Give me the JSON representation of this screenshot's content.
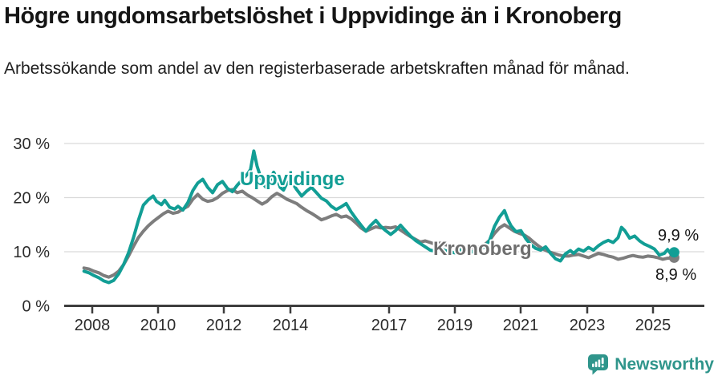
{
  "chart_data": {
    "type": "line",
    "title": "Högre ungdomsarbetslöshet i Uppvidinge än i Kronoberg",
    "subtitle": "Arbetssökande som andel av den registerbaserade arbetskraften månad för månad.",
    "xlabel": "",
    "ylabel": "",
    "ylim": [
      0,
      30
    ],
    "xlim": [
      2007.75,
      2025.9
    ],
    "grid": "horizontal",
    "legend_position": "inline-labels",
    "y_tick_labels": [
      "0 %",
      "10 %",
      "20 %",
      "30 %"
    ],
    "x_tick_labels": [
      "2008",
      "2010",
      "2012",
      "2014",
      "2017",
      "2019",
      "2021",
      "2023",
      "2025"
    ],
    "series": [
      {
        "id": "kronoberg",
        "name": "Kronoberg",
        "color": "#7d7d7d",
        "end_label": "8,9 %",
        "points": [
          [
            2007.75,
            7.0
          ],
          [
            2007.9,
            6.8
          ],
          [
            2008.05,
            6.4
          ],
          [
            2008.2,
            6.1
          ],
          [
            2008.35,
            5.6
          ],
          [
            2008.5,
            5.3
          ],
          [
            2008.65,
            5.7
          ],
          [
            2008.8,
            6.4
          ],
          [
            2008.95,
            7.6
          ],
          [
            2009.1,
            9.2
          ],
          [
            2009.25,
            11.0
          ],
          [
            2009.4,
            12.6
          ],
          [
            2009.55,
            13.8
          ],
          [
            2009.7,
            14.8
          ],
          [
            2009.85,
            15.6
          ],
          [
            2010.0,
            16.3
          ],
          [
            2010.15,
            17.0
          ],
          [
            2010.3,
            17.5
          ],
          [
            2010.45,
            17.1
          ],
          [
            2010.6,
            17.3
          ],
          [
            2010.75,
            17.9
          ],
          [
            2010.9,
            18.4
          ],
          [
            2011.05,
            19.7
          ],
          [
            2011.2,
            20.6
          ],
          [
            2011.35,
            19.7
          ],
          [
            2011.5,
            19.3
          ],
          [
            2011.65,
            19.5
          ],
          [
            2011.8,
            20.0
          ],
          [
            2011.95,
            20.8
          ],
          [
            2012.1,
            21.3
          ],
          [
            2012.25,
            21.5
          ],
          [
            2012.4,
            20.9
          ],
          [
            2012.55,
            21.2
          ],
          [
            2012.7,
            20.5
          ],
          [
            2012.85,
            20.0
          ],
          [
            2013.0,
            19.4
          ],
          [
            2013.15,
            18.8
          ],
          [
            2013.3,
            19.3
          ],
          [
            2013.45,
            20.2
          ],
          [
            2013.6,
            20.8
          ],
          [
            2013.75,
            20.3
          ],
          [
            2013.9,
            19.7
          ],
          [
            2014.05,
            19.3
          ],
          [
            2014.2,
            18.9
          ],
          [
            2014.35,
            18.2
          ],
          [
            2014.5,
            17.6
          ],
          [
            2014.65,
            17.1
          ],
          [
            2014.8,
            16.5
          ],
          [
            2014.95,
            15.9
          ],
          [
            2015.1,
            16.2
          ],
          [
            2015.25,
            16.6
          ],
          [
            2015.4,
            16.9
          ],
          [
            2015.55,
            16.4
          ],
          [
            2015.7,
            16.6
          ],
          [
            2015.85,
            16.1
          ],
          [
            2016.0,
            15.3
          ],
          [
            2016.15,
            14.4
          ],
          [
            2016.3,
            13.8
          ],
          [
            2016.45,
            14.2
          ],
          [
            2016.6,
            14.6
          ],
          [
            2016.75,
            14.4
          ],
          [
            2016.9,
            14.5
          ],
          [
            2017.05,
            14.4
          ],
          [
            2017.2,
            14.6
          ],
          [
            2017.35,
            14.0
          ],
          [
            2017.5,
            13.4
          ],
          [
            2017.65,
            12.8
          ],
          [
            2017.8,
            12.3
          ],
          [
            2017.95,
            11.8
          ],
          [
            2018.1,
            12.0
          ],
          [
            2018.25,
            11.7
          ],
          [
            2018.4,
            11.4
          ],
          [
            2018.55,
            11.6
          ],
          [
            2018.7,
            11.3
          ],
          [
            2018.85,
            11.1
          ],
          [
            2019.0,
            11.0
          ],
          [
            2019.15,
            10.9
          ],
          [
            2019.3,
            10.7
          ],
          [
            2019.45,
            10.8
          ],
          [
            2019.6,
            10.6
          ],
          [
            2019.75,
            10.9
          ],
          [
            2019.9,
            11.3
          ],
          [
            2020.05,
            12.1
          ],
          [
            2020.2,
            13.4
          ],
          [
            2020.35,
            14.4
          ],
          [
            2020.5,
            15.0
          ],
          [
            2020.65,
            14.4
          ],
          [
            2020.8,
            13.8
          ],
          [
            2020.95,
            13.4
          ],
          [
            2021.1,
            13.1
          ],
          [
            2021.25,
            12.5
          ],
          [
            2021.4,
            11.7
          ],
          [
            2021.55,
            11.0
          ],
          [
            2021.7,
            10.4
          ],
          [
            2021.85,
            10.0
          ],
          [
            2022.0,
            9.7
          ],
          [
            2022.15,
            9.4
          ],
          [
            2022.3,
            9.2
          ],
          [
            2022.45,
            9.2
          ],
          [
            2022.6,
            9.4
          ],
          [
            2022.75,
            9.5
          ],
          [
            2022.9,
            9.2
          ],
          [
            2023.05,
            8.9
          ],
          [
            2023.2,
            9.3
          ],
          [
            2023.35,
            9.7
          ],
          [
            2023.5,
            9.5
          ],
          [
            2023.65,
            9.2
          ],
          [
            2023.8,
            9.0
          ],
          [
            2023.95,
            8.6
          ],
          [
            2024.1,
            8.8
          ],
          [
            2024.25,
            9.1
          ],
          [
            2024.4,
            9.3
          ],
          [
            2024.55,
            9.1
          ],
          [
            2024.7,
            9.0
          ],
          [
            2024.85,
            9.2
          ],
          [
            2025.0,
            9.1
          ],
          [
            2025.15,
            8.9
          ],
          [
            2025.3,
            8.6
          ],
          [
            2025.45,
            8.8
          ],
          [
            2025.65,
            8.9
          ]
        ]
      },
      {
        "id": "uppvidinge",
        "name": "Uppvidinge",
        "color": "#129e95",
        "end_label": "9,9 %",
        "points": [
          [
            2007.75,
            6.4
          ],
          [
            2007.9,
            6.1
          ],
          [
            2008.05,
            5.6
          ],
          [
            2008.2,
            5.2
          ],
          [
            2008.35,
            4.6
          ],
          [
            2008.5,
            4.3
          ],
          [
            2008.65,
            4.7
          ],
          [
            2008.8,
            5.9
          ],
          [
            2008.95,
            7.6
          ],
          [
            2009.1,
            9.8
          ],
          [
            2009.25,
            12.6
          ],
          [
            2009.4,
            15.8
          ],
          [
            2009.55,
            18.6
          ],
          [
            2009.7,
            19.6
          ],
          [
            2009.85,
            20.3
          ],
          [
            2009.95,
            19.3
          ],
          [
            2010.1,
            18.7
          ],
          [
            2010.2,
            19.5
          ],
          [
            2010.35,
            18.2
          ],
          [
            2010.5,
            17.9
          ],
          [
            2010.6,
            18.4
          ],
          [
            2010.75,
            17.7
          ],
          [
            2010.9,
            19.1
          ],
          [
            2011.05,
            21.3
          ],
          [
            2011.2,
            22.7
          ],
          [
            2011.35,
            23.4
          ],
          [
            2011.5,
            21.9
          ],
          [
            2011.65,
            20.9
          ],
          [
            2011.8,
            22.4
          ],
          [
            2011.95,
            23.0
          ],
          [
            2012.1,
            21.7
          ],
          [
            2012.25,
            21.1
          ],
          [
            2012.4,
            22.3
          ],
          [
            2012.55,
            23.3
          ],
          [
            2012.7,
            24.3
          ],
          [
            2012.8,
            25.2
          ],
          [
            2012.9,
            28.6
          ],
          [
            2013.0,
            25.8
          ],
          [
            2013.1,
            23.9
          ],
          [
            2013.2,
            22.4
          ],
          [
            2013.3,
            21.7
          ],
          [
            2013.4,
            23.3
          ],
          [
            2013.5,
            24.7
          ],
          [
            2013.6,
            23.6
          ],
          [
            2013.7,
            21.9
          ],
          [
            2013.8,
            21.4
          ],
          [
            2013.9,
            22.6
          ],
          [
            2014.0,
            23.1
          ],
          [
            2014.1,
            22.4
          ],
          [
            2014.2,
            21.5
          ],
          [
            2014.35,
            20.3
          ],
          [
            2014.5,
            21.2
          ],
          [
            2014.65,
            21.9
          ],
          [
            2014.8,
            20.9
          ],
          [
            2014.95,
            19.9
          ],
          [
            2015.1,
            19.4
          ],
          [
            2015.25,
            18.4
          ],
          [
            2015.4,
            17.8
          ],
          [
            2015.55,
            18.3
          ],
          [
            2015.7,
            18.9
          ],
          [
            2015.85,
            17.4
          ],
          [
            2016.0,
            16.1
          ],
          [
            2016.15,
            14.9
          ],
          [
            2016.3,
            13.8
          ],
          [
            2016.45,
            14.9
          ],
          [
            2016.6,
            15.8
          ],
          [
            2016.75,
            14.7
          ],
          [
            2016.9,
            13.9
          ],
          [
            2017.05,
            13.2
          ],
          [
            2017.2,
            13.9
          ],
          [
            2017.35,
            14.9
          ],
          [
            2017.5,
            13.9
          ],
          [
            2017.65,
            12.9
          ],
          [
            2017.8,
            12.1
          ],
          [
            2017.95,
            11.5
          ],
          [
            2018.1,
            10.9
          ],
          [
            2018.25,
            10.3
          ],
          [
            2018.4,
            10.1
          ],
          [
            2018.55,
            10.7
          ],
          [
            2018.7,
            10.2
          ],
          [
            2018.85,
            10.0
          ],
          [
            2019.0,
            9.8
          ],
          [
            2019.15,
            10.3
          ],
          [
            2019.3,
            10.0
          ],
          [
            2019.45,
            9.8
          ],
          [
            2019.6,
            10.2
          ],
          [
            2019.75,
            10.5
          ],
          [
            2019.9,
            10.9
          ],
          [
            2020.05,
            12.1
          ],
          [
            2020.2,
            14.7
          ],
          [
            2020.35,
            16.4
          ],
          [
            2020.5,
            17.6
          ],
          [
            2020.6,
            16.0
          ],
          [
            2020.7,
            14.8
          ],
          [
            2020.85,
            13.7
          ],
          [
            2021.0,
            13.9
          ],
          [
            2021.15,
            12.4
          ],
          [
            2021.3,
            11.3
          ],
          [
            2021.45,
            10.6
          ],
          [
            2021.6,
            10.3
          ],
          [
            2021.75,
            10.9
          ],
          [
            2021.9,
            9.7
          ],
          [
            2022.05,
            8.7
          ],
          [
            2022.2,
            8.3
          ],
          [
            2022.35,
            9.6
          ],
          [
            2022.5,
            10.2
          ],
          [
            2022.6,
            9.7
          ],
          [
            2022.75,
            10.5
          ],
          [
            2022.9,
            10.1
          ],
          [
            2023.05,
            10.8
          ],
          [
            2023.2,
            10.3
          ],
          [
            2023.35,
            11.1
          ],
          [
            2023.5,
            11.7
          ],
          [
            2023.65,
            12.1
          ],
          [
            2023.8,
            11.7
          ],
          [
            2023.95,
            12.6
          ],
          [
            2024.05,
            14.5
          ],
          [
            2024.15,
            13.9
          ],
          [
            2024.3,
            12.5
          ],
          [
            2024.45,
            12.9
          ],
          [
            2024.6,
            12.0
          ],
          [
            2024.75,
            11.4
          ],
          [
            2024.9,
            11.0
          ],
          [
            2025.05,
            10.5
          ],
          [
            2025.2,
            9.4
          ],
          [
            2025.35,
            9.7
          ],
          [
            2025.45,
            10.4
          ],
          [
            2025.55,
            9.6
          ],
          [
            2025.65,
            9.9
          ]
        ]
      }
    ]
  },
  "footer": {
    "brand": "Newsworthy",
    "brand_color": "#2f958b"
  }
}
